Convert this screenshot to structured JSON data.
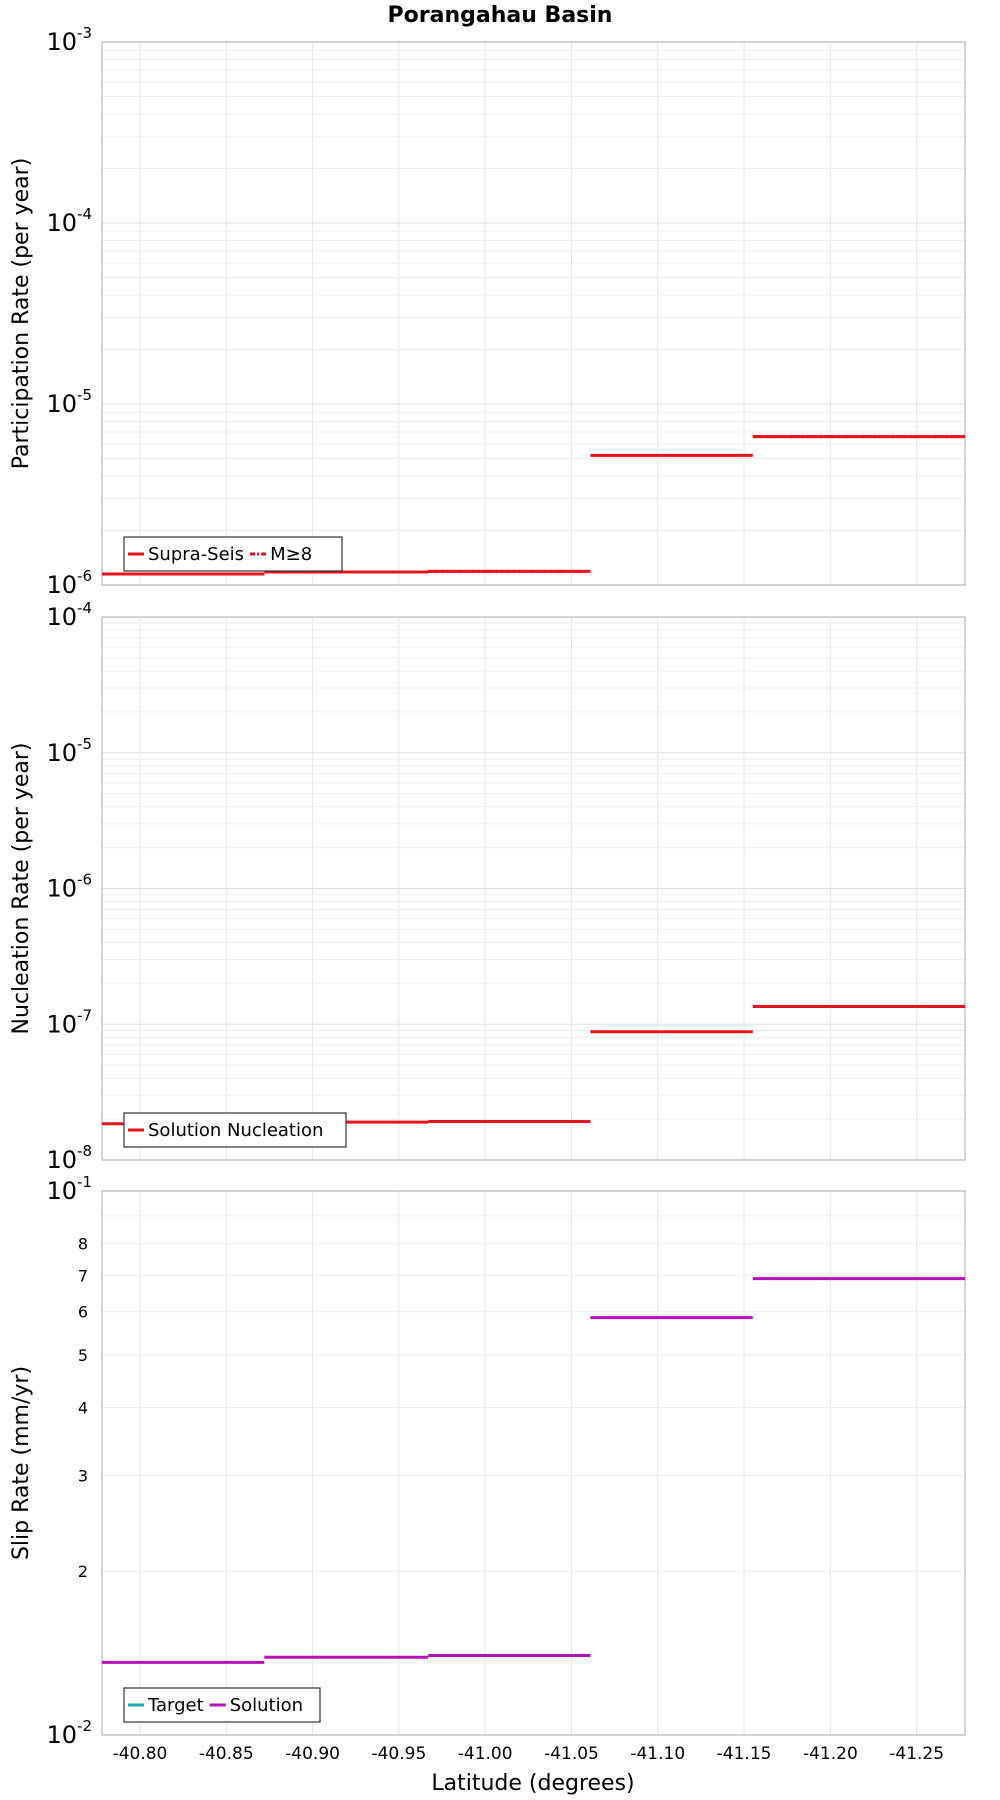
{
  "chart_data": [
    {
      "type": "line",
      "title": "Porangahau Basin",
      "xlabel": "Latitude (degrees)",
      "ylabel": "Participation Rate (per year)",
      "yscale": "log",
      "ylim": [
        1e-06,
        0.001
      ],
      "xlim": [
        -40.778,
        -41.278
      ],
      "x_ticks": [
        -40.8,
        -40.85,
        -40.9,
        -40.95,
        -41.0,
        -41.05,
        -41.1,
        -41.15,
        -41.2,
        -41.25
      ],
      "x_tick_labels": [
        "-40.80",
        "-40.85",
        "-40.90",
        "-40.95",
        "-41.00",
        "-41.05",
        "-41.10",
        "-41.15",
        "-41.20",
        "-41.25"
      ],
      "y_ticks": [
        1e-06,
        1e-05,
        0.0001,
        0.001
      ],
      "y_tick_bases": [
        "10",
        "10",
        "10",
        "10"
      ],
      "y_tick_exps": [
        "-6",
        "-5",
        "-4",
        "-3"
      ],
      "legend": [
        "Supra-Seis",
        "M≥8"
      ],
      "legend_colors": [
        "#e8141c",
        "#e8141c"
      ],
      "series": [
        {
          "name": "Supra-Seis",
          "color": "#e8141c",
          "style": "solid",
          "segments": [
            {
              "x0": -40.778,
              "x1": -40.872,
              "y": 1.15e-06
            },
            {
              "x0": -40.872,
              "x1": -40.967,
              "y": 1.18e-06
            },
            {
              "x0": -40.967,
              "x1": -41.061,
              "y": 1.19e-06
            },
            {
              "x0": -41.061,
              "x1": -41.155,
              "y": 5.2e-06
            },
            {
              "x0": -41.155,
              "x1": -41.278,
              "y": 6.6e-06
            }
          ]
        },
        {
          "name": "M≥8",
          "color": "#e8141c",
          "style": "dashdot",
          "segments": [
            {
              "x0": -40.778,
              "x1": -40.872,
              "y": 1.15e-06
            },
            {
              "x0": -40.872,
              "x1": -40.967,
              "y": 1.18e-06
            },
            {
              "x0": -40.967,
              "x1": -41.061,
              "y": 1.19e-06
            },
            {
              "x0": -41.155,
              "x1": -41.278,
              "y": 6.6e-06
            }
          ]
        }
      ]
    },
    {
      "type": "line",
      "xlabel": "Latitude (degrees)",
      "ylabel": "Nucleation Rate (per year)",
      "yscale": "log",
      "ylim": [
        1e-08,
        0.0001
      ],
      "xlim": [
        -40.778,
        -41.278
      ],
      "y_ticks": [
        1e-08,
        1e-07,
        1e-06,
        1e-05,
        0.0001
      ],
      "y_tick_bases": [
        "10",
        "10",
        "10",
        "10",
        "10"
      ],
      "y_tick_exps": [
        "-8",
        "-7",
        "-6",
        "-5",
        "-4"
      ],
      "legend": [
        "Solution Nucleation"
      ],
      "legend_colors": [
        "#e8141c"
      ],
      "series": [
        {
          "name": "Solution Nucleation",
          "color": "#e8141c",
          "style": "solid",
          "segments": [
            {
              "x0": -40.778,
              "x1": -40.872,
              "y": 1.85e-08
            },
            {
              "x0": -40.872,
              "x1": -40.967,
              "y": 1.9e-08
            },
            {
              "x0": -40.967,
              "x1": -41.061,
              "y": 1.92e-08
            },
            {
              "x0": -41.061,
              "x1": -41.155,
              "y": 8.8e-08
            },
            {
              "x0": -41.155,
              "x1": -41.278,
              "y": 1.35e-07
            }
          ]
        }
      ]
    },
    {
      "type": "line",
      "xlabel": "Latitude (degrees)",
      "ylabel": "Slip Rate (mm/yr)",
      "yscale": "log",
      "ylim": [
        0.01,
        0.1
      ],
      "xlim": [
        -40.778,
        -41.278
      ],
      "x_ticks": [
        -40.8,
        -40.85,
        -40.9,
        -40.95,
        -41.0,
        -41.05,
        -41.1,
        -41.15,
        -41.2,
        -41.25
      ],
      "x_tick_labels": [
        "-40.80",
        "-40.85",
        "-40.90",
        "-40.95",
        "-41.00",
        "-41.05",
        "-41.10",
        "-41.15",
        "-41.20",
        "-41.25"
      ],
      "y_ticks": [
        0.01,
        0.1
      ],
      "y_tick_bases": [
        "10",
        "10"
      ],
      "y_tick_exps": [
        "-2",
        "-1"
      ],
      "y_minor_ticks": [
        0.02,
        0.03,
        0.04,
        0.05,
        0.06,
        0.07,
        0.08
      ],
      "y_minor_labels": [
        "2",
        "3",
        "4",
        "5",
        "6",
        "7",
        "8"
      ],
      "legend": [
        "Target",
        "Solution"
      ],
      "legend_colors": [
        "#1aaeb0",
        "#b312b8"
      ],
      "series": [
        {
          "name": "Target",
          "color": "#1aaeb0",
          "style": "solid",
          "segments": []
        },
        {
          "name": "Solution",
          "color": "#b312b8",
          "style": "solid",
          "segments": [
            {
              "x0": -40.778,
              "x1": -40.872,
              "y": 0.0136
            },
            {
              "x0": -40.872,
              "x1": -40.967,
              "y": 0.0139
            },
            {
              "x0": -40.967,
              "x1": -41.061,
              "y": 0.014
            },
            {
              "x0": -41.061,
              "x1": -41.155,
              "y": 0.0585
            },
            {
              "x0": -41.155,
              "x1": -41.278,
              "y": 0.069
            }
          ]
        }
      ]
    }
  ]
}
